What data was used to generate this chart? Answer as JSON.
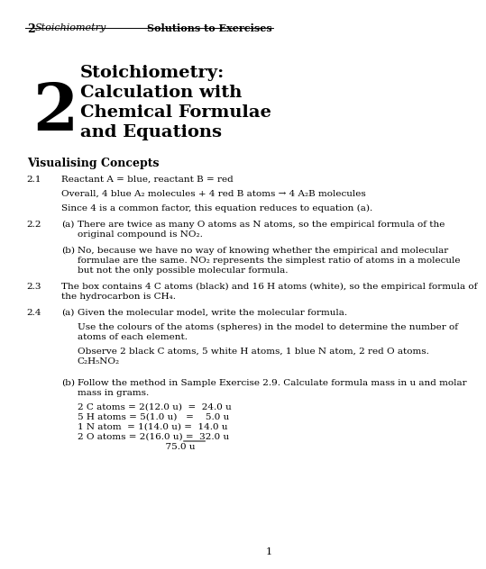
{
  "bg_color": "#ffffff",
  "header_left": "2  Stoichiometry",
  "header_right": "Solutions to Exercises",
  "chapter_num": "2",
  "title_lines": [
    "Stoichiometry:",
    "Calculation with",
    "Chemical Formulae",
    "and Equations"
  ],
  "section": "Visualising Concepts",
  "items": [
    {
      "num": "2.1",
      "indent_a": false,
      "text": "Reactant A = blue, reactant B = red"
    },
    {
      "num": "",
      "indent_a": false,
      "text": "Overall, 4 blue A₂ molecules + 4 red B atoms → 4 A₂B molecules"
    },
    {
      "num": "",
      "indent_a": false,
      "text": "Since 4 is a common factor, this equation reduces to equation (a)."
    },
    {
      "num": "2.2",
      "indent_a": true,
      "label": "(a)",
      "text": "There are twice as many O atoms as N atoms, so the empirical formula of the\noriginal compound is NO₂."
    },
    {
      "num": "",
      "indent_a": true,
      "label": "(b)",
      "text": "No, because we have no way of knowing whether the empirical and molecular\nformulae are the same. NO₂ represents the simplest ratio of atoms in a molecule\nbut not the only possible molecular formula."
    },
    {
      "num": "2.3",
      "indent_a": false,
      "text": "The box contains 4 C atoms (black) and 16 H atoms (white), so the empirical formula of\nthe hydrocarbon is CH₄."
    },
    {
      "num": "2.4",
      "indent_a": true,
      "label": "(a)",
      "text": "Given the molecular model, write the molecular formula."
    },
    {
      "num": "",
      "indent_a": true,
      "label": "",
      "text": "Use the colours of the atoms (spheres) in the model to determine the number of\natoms of each element."
    },
    {
      "num": "",
      "indent_a": true,
      "label": "",
      "text": "Observe 2 black C atoms, 5 white H atoms, 1 blue N atom, 2 red O atoms.\nC₂H₅NO₂"
    },
    {
      "num": "",
      "indent_a": true,
      "label": "(b)",
      "text": "Follow the method in Sample Exercise 2.9. Calculate formula mass in u and molar\nmass in grams."
    },
    {
      "num": "",
      "indent_a": true,
      "label": "",
      "text": "2 C atoms = 2(12.0 u)  =  24.0 u\n5 H atoms = 5(1.0 u)   =    5.0 u\n1 N atom  = 1(14.0 u) =  14.0 u\n2 O atoms = 2(16.0 u) =  32.0 u\n                               75.0 u"
    }
  ],
  "page_num": "1"
}
